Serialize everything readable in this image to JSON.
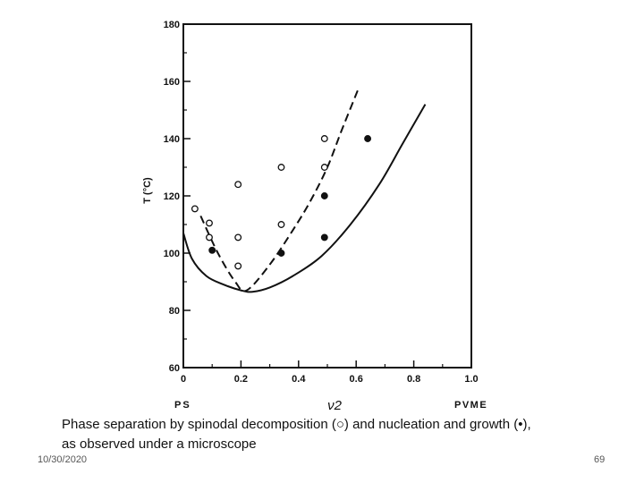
{
  "chart_data": {
    "type": "scatter",
    "ylabel": "T (°C)",
    "xlabel": "ν2",
    "x_left_end_label": "PS",
    "x_right_end_label": "PVME",
    "xlim": [
      0,
      1.0
    ],
    "ylim": [
      60,
      180
    ],
    "x_ticks": [
      "0",
      "0.2",
      "0.4",
      "0.6",
      "0.8",
      "1.0"
    ],
    "y_ticks": [
      "60",
      "80",
      "100",
      "120",
      "140",
      "160",
      "180"
    ],
    "grid": false,
    "series": [
      {
        "marker": "open-circle",
        "points": [
          [
            0.04,
            115.5
          ],
          [
            0.09,
            110.5
          ],
          [
            0.09,
            105.5
          ],
          [
            0.19,
            124
          ],
          [
            0.19,
            105.5
          ],
          [
            0.19,
            95.5
          ],
          [
            0.34,
            130
          ],
          [
            0.34,
            110
          ],
          [
            0.49,
            140
          ],
          [
            0.49,
            130
          ]
        ]
      },
      {
        "marker": "filled-circle",
        "points": [
          [
            0.1,
            101
          ],
          [
            0.34,
            100
          ],
          [
            0.49,
            120
          ],
          [
            0.49,
            105.5
          ],
          [
            0.64,
            140
          ]
        ]
      },
      {
        "line": "dashed",
        "points": [
          [
            0.06,
            113
          ],
          [
            0.12,
            100
          ],
          [
            0.18,
            90
          ],
          [
            0.22,
            87
          ],
          [
            0.3,
            96
          ],
          [
            0.38,
            108
          ],
          [
            0.44,
            118
          ],
          [
            0.5,
            130
          ],
          [
            0.55,
            143
          ],
          [
            0.61,
            158
          ]
        ]
      },
      {
        "line": "solid",
        "points": [
          [
            0.0,
            107
          ],
          [
            0.03,
            98
          ],
          [
            0.08,
            92
          ],
          [
            0.14,
            89
          ],
          [
            0.2,
            87
          ],
          [
            0.24,
            86.5
          ],
          [
            0.3,
            88
          ],
          [
            0.38,
            92
          ],
          [
            0.48,
            99
          ],
          [
            0.58,
            110
          ],
          [
            0.68,
            124
          ],
          [
            0.76,
            138
          ],
          [
            0.84,
            152
          ]
        ]
      }
    ]
  },
  "caption": {
    "line1": "Phase separation by spinodal decomposition (○) and nucleation and growth (•),",
    "line2": "as observed under a microscope"
  },
  "footer": {
    "date": "10/30/2020",
    "page": "69"
  }
}
